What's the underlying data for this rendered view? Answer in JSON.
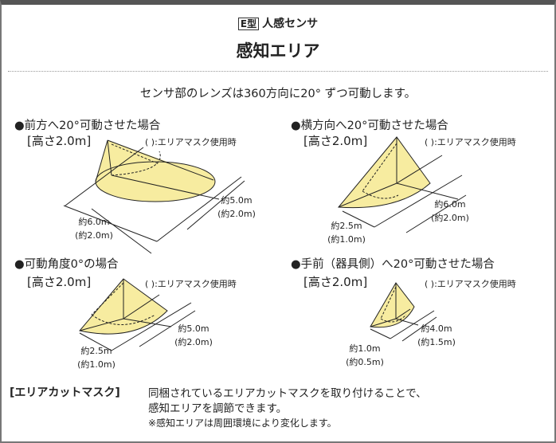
{
  "header": {
    "badge": "E型",
    "subtitle": "人感センサ",
    "title": "感知エリア"
  },
  "intro": "センサ部のレンズは360方向に20° ずつ可動します。",
  "fill_color": "#f7eca0",
  "cases": [
    {
      "title": "●前方へ20°可動させた場合",
      "height": "[高さ2.0m]",
      "note": "(    ):エリアマスク使用時",
      "dim_a": "約5.0m",
      "dim_a_mask": "(約2.0m)",
      "dim_b": "約6.0m",
      "dim_b_mask": "(約2.0m)"
    },
    {
      "title": "●横方向へ20°可動させた場合",
      "height": "[高さ2.0m]",
      "note": "(    ):エリアマスク使用時",
      "dim_a": "約6.0m",
      "dim_a_mask": "(約2.0m)",
      "dim_b": "約2.5m",
      "dim_b_mask": "(約1.0m)"
    },
    {
      "title": "●可動角度0°の場合",
      "height": "[高さ2.0m]",
      "note": "(    ):エリアマスク使用時",
      "dim_a": "約5.0m",
      "dim_a_mask": "(約2.0m)",
      "dim_b": "約2.5m",
      "dim_b_mask": "(約1.0m)"
    },
    {
      "title": "●手前（器具側）へ20°可動させた場合",
      "height": "[高さ2.0m]",
      "note": "(    ):エリアマスク使用時",
      "dim_a": "約4.0m",
      "dim_a_mask": "(約1.5m)",
      "dim_b": "約1.0m",
      "dim_b_mask": "(約0.5m)"
    }
  ],
  "mask": {
    "heading": "[エリアカットマスク]",
    "line1": "同梱されているエリアカットマスクを取り付けることで、",
    "line2": "感知エリアを調節できます。",
    "footnote": "※感知エリアは周囲環境により変化します。"
  }
}
